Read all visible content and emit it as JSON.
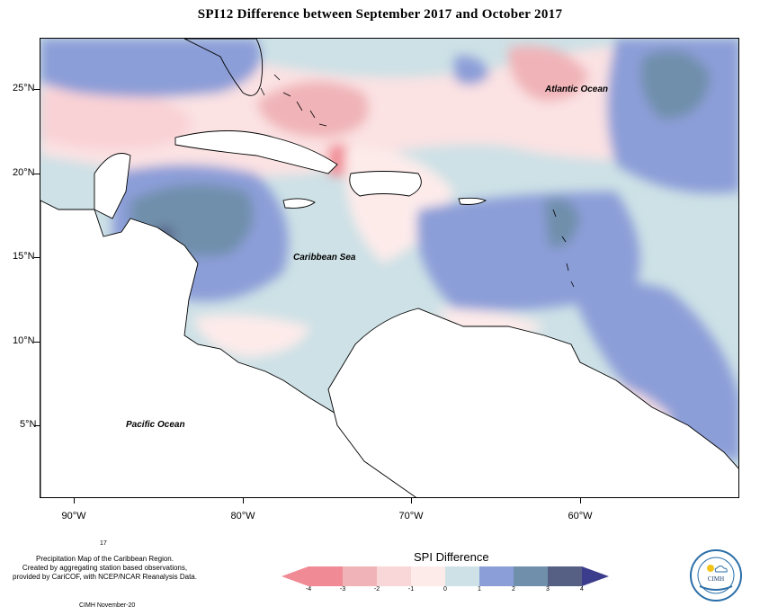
{
  "title": "SPI12 Difference between September 2017 and October 2017",
  "axes": {
    "y_ticks": [
      "25°N",
      "20°N",
      "15°N",
      "10°N",
      "5°N"
    ],
    "x_ticks": [
      "90°W",
      "80°W",
      "70°W",
      "60°W"
    ]
  },
  "labels": {
    "atlantic": "Atlantic Ocean",
    "caribbean": "Caribbean Sea",
    "pacific": "Pacific Ocean"
  },
  "credits": {
    "number": "17",
    "line1": "Precipitation Map of the Caribbean Region.",
    "line2": "Created by aggregating station based observations,",
    "line3": "provided by CariCOF, with NCEP/NCAR Reanalysis Data.",
    "stamp": "CIMH November-20"
  },
  "legend": {
    "title": "SPI Difference",
    "ticks": [
      "-4",
      "-3",
      "-2",
      "-1",
      "0",
      "1",
      "2",
      "3",
      "4"
    ],
    "colors": [
      "#f08a94",
      "#f0b4b8",
      "#f9d6d8",
      "#fdebea",
      "#cde1e6",
      "#8c9ed8",
      "#6f8fab",
      "#566085",
      "#3b3c8c"
    ]
  },
  "logo": {
    "text": "CIMH"
  }
}
